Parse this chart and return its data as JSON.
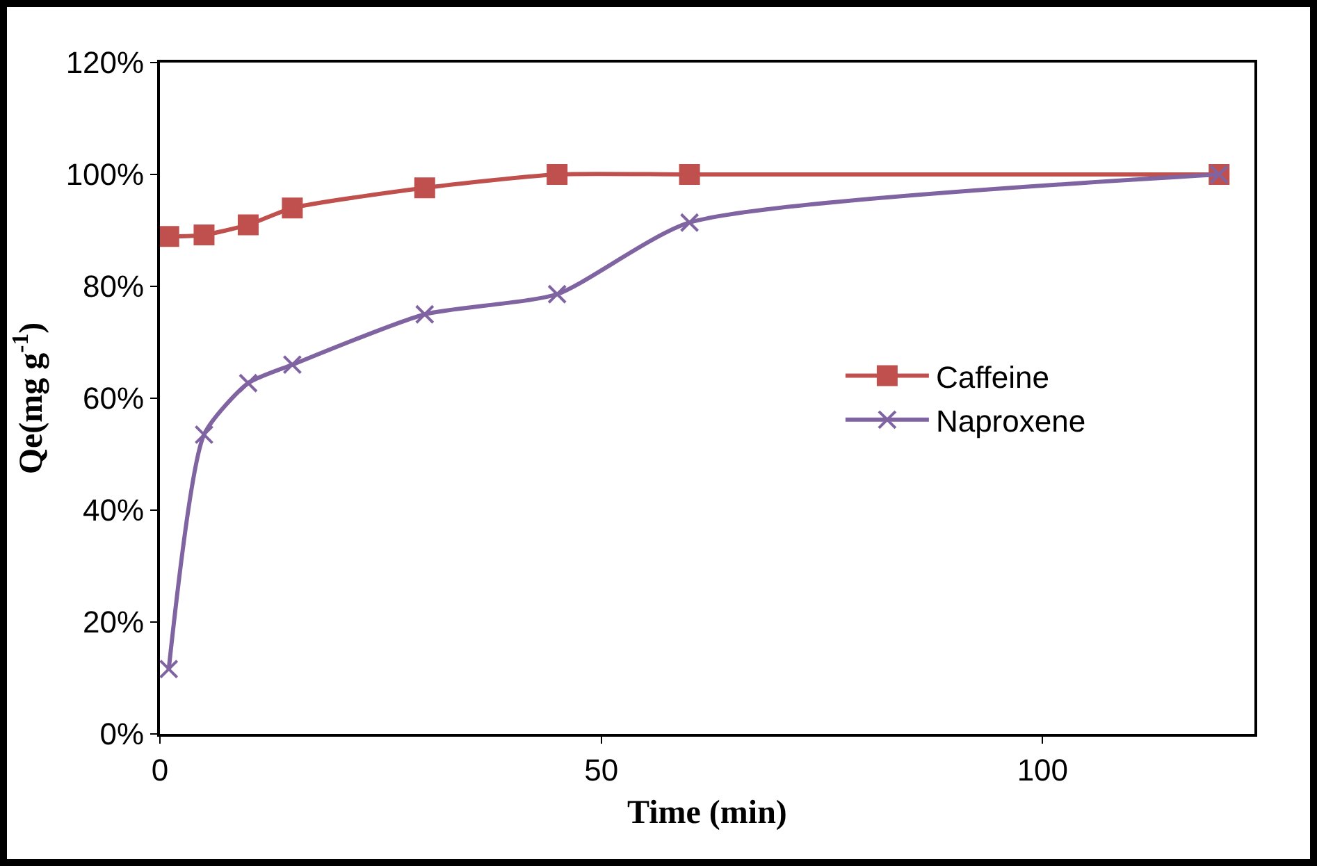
{
  "chart_data": {
    "type": "line",
    "xlabel": "Time (min)",
    "ylabel": "Qe(mg g$^{-1}$)",
    "xlim": [
      0,
      124
    ],
    "xticks": [
      0,
      50,
      100
    ],
    "ylim": [
      0,
      120
    ],
    "yticks": [
      {
        "value": 0,
        "label": "0%"
      },
      {
        "value": 20,
        "label": "20%"
      },
      {
        "value": 40,
        "label": "40%"
      },
      {
        "value": 60,
        "label": "60%"
      },
      {
        "value": 80,
        "label": "80%"
      },
      {
        "value": 100,
        "label": "100%"
      },
      {
        "value": 120,
        "label": "120%"
      }
    ],
    "x": [
      1,
      5,
      10,
      15,
      30,
      45,
      60,
      120
    ],
    "series": [
      {
        "name": "Caffeine",
        "color": "#c0504d",
        "marker": "square",
        "values": [
          88.9,
          89.2,
          91,
          94,
          97.6,
          100,
          100,
          100
        ]
      },
      {
        "name": "Naproxene",
        "color": "#8064a2",
        "marker": "cross",
        "values": [
          11.6,
          53.5,
          62.7,
          66,
          75,
          78.6,
          91.4,
          100
        ]
      }
    ],
    "grid": false,
    "legend": "right"
  }
}
